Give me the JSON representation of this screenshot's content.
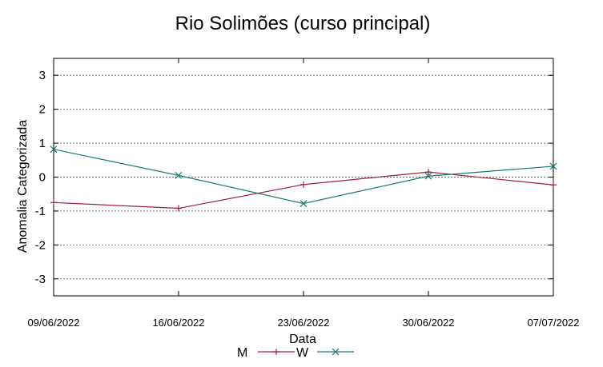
{
  "chart_data": {
    "type": "line",
    "title": "Rio Solimões (curso principal)",
    "xlabel": "Data",
    "ylabel": "Anomalia Categorizada",
    "x": [
      "09/06/2022",
      "16/06/2022",
      "23/06/2022",
      "30/06/2022",
      "07/07/2022"
    ],
    "ylim": [
      -3.5,
      3.5
    ],
    "yticks": [
      -3,
      -2,
      -1,
      0,
      1,
      2,
      3
    ],
    "grid": true,
    "legend": "bottom",
    "series": [
      {
        "name": "M",
        "color": "#a0203a",
        "marker": "plus",
        "values": [
          -0.75,
          -0.92,
          -0.22,
          0.15,
          -0.23
        ]
      },
      {
        "name": "W",
        "color": "#1a7a7a",
        "marker": "cross",
        "values": [
          0.82,
          0.05,
          -0.78,
          0.03,
          0.32
        ]
      }
    ]
  }
}
